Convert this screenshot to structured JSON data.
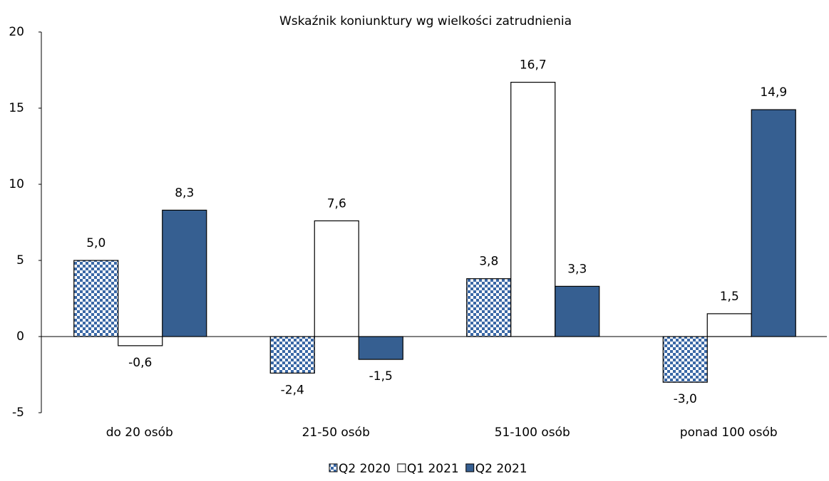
{
  "chart_data": {
    "type": "bar",
    "title": "Wskaźnik koniunktury wg wielkości zatrudnienia",
    "categories": [
      "do 20 osób",
      "21-50 osób",
      "51-100 osób",
      "ponad 100 osób"
    ],
    "series": [
      {
        "name": "Q2 2020",
        "color": "#3a68a6",
        "pattern": "checker",
        "values": [
          5.0,
          -2.4,
          3.8,
          -3.0
        ],
        "value_labels": [
          "5,0",
          "-2,4",
          "3,8",
          "-3,0"
        ]
      },
      {
        "name": "Q1 2021",
        "color": "#ffffff",
        "values": [
          -0.6,
          7.6,
          16.7,
          1.5
        ],
        "value_labels": [
          "-0,6",
          "7,6",
          "16,7",
          "1,5"
        ]
      },
      {
        "name": "Q2 2021",
        "color": "#365f91",
        "values": [
          8.3,
          -1.5,
          3.3,
          14.9
        ],
        "value_labels": [
          "8,3",
          "-1,5",
          "3,3",
          "14,9"
        ]
      }
    ],
    "ylim": [
      -5,
      20
    ],
    "yticks": [
      -5,
      0,
      5,
      10,
      15,
      20
    ],
    "legend": "bottom"
  }
}
